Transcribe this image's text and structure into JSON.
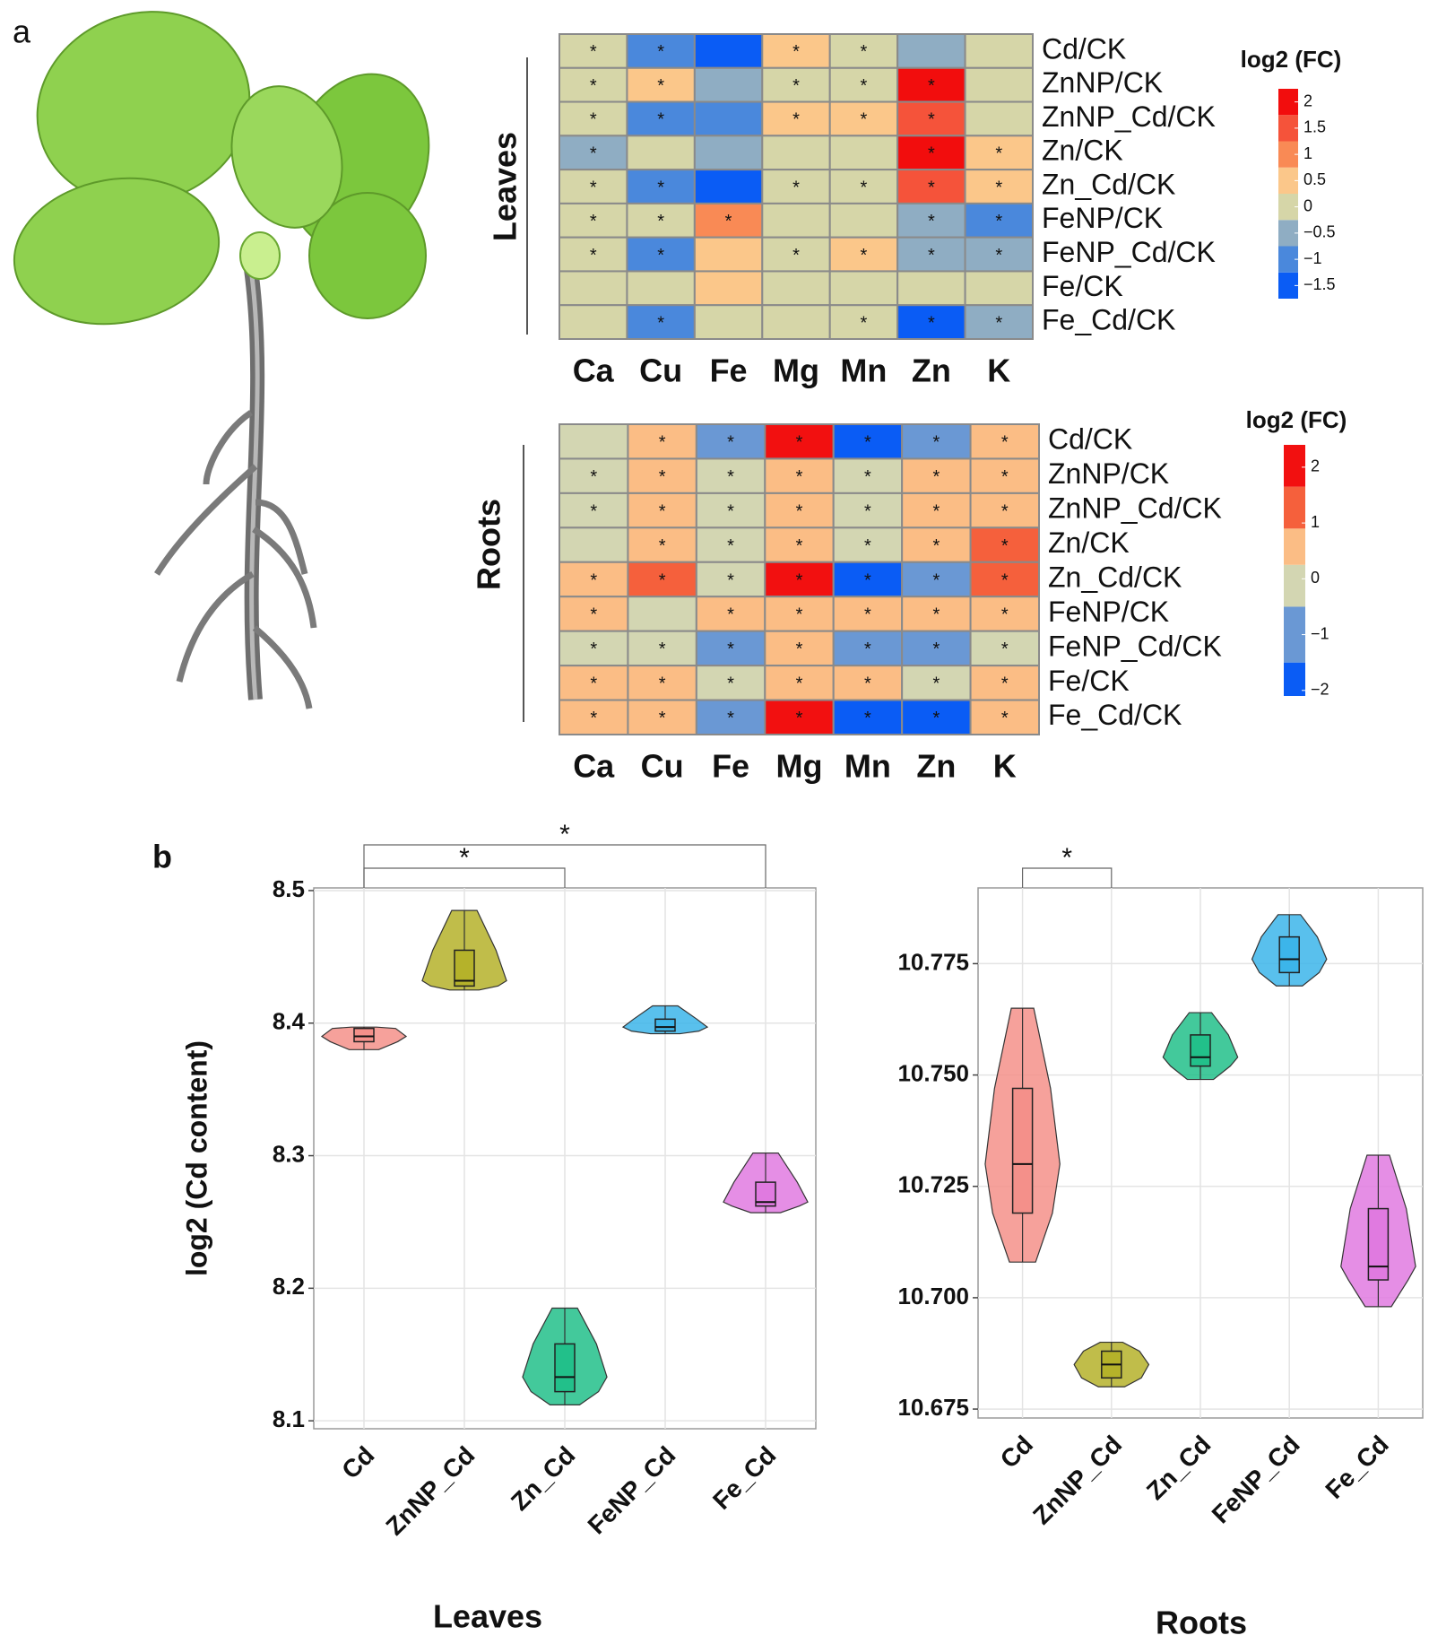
{
  "panel_labels": [
    "a",
    "b"
  ],
  "chart_data": [
    {
      "type": "heatmap",
      "title": "Leaves",
      "columns": [
        "Ca",
        "Cu",
        "Fe",
        "Mg",
        "Mn",
        "Zn",
        "K"
      ],
      "rows": [
        "Cd/CK",
        "ZnNP/CK",
        "ZnNP_Cd/CK",
        "Zn/CK",
        "Zn_Cd/CK",
        "FeNP/CK",
        "FeNP_Cd/CK",
        "Fe/CK",
        "Fe_Cd/CK"
      ],
      "values": [
        [
          0,
          -1,
          -1.5,
          0.5,
          0,
          -0.5,
          0
        ],
        [
          0,
          0.5,
          -0.5,
          0,
          0,
          2,
          0
        ],
        [
          0,
          -1,
          -1,
          0.5,
          0.5,
          1.5,
          0
        ],
        [
          -0.5,
          0,
          -0.5,
          0,
          0,
          2,
          0.5
        ],
        [
          0,
          -1,
          -1.5,
          0,
          0,
          1.5,
          0.5
        ],
        [
          0,
          0,
          1,
          0,
          0,
          -0.5,
          -1
        ],
        [
          0,
          -1,
          0.5,
          0,
          0.5,
          -0.5,
          -0.5
        ],
        [
          0,
          0,
          0.5,
          0,
          0,
          0,
          0
        ],
        [
          0,
          -1,
          0,
          0,
          0,
          -1.5,
          -0.5
        ]
      ],
      "stars": [
        [
          "*",
          "*",
          null,
          "*",
          "*",
          null,
          null
        ],
        [
          "*",
          "*",
          null,
          "*",
          "*",
          "*",
          null
        ],
        [
          "*",
          "*",
          null,
          "*",
          "*",
          "*",
          null
        ],
        [
          "*",
          null,
          null,
          null,
          null,
          "*",
          "*"
        ],
        [
          "*",
          "*",
          null,
          "*",
          "*",
          "*",
          "*"
        ],
        [
          "*",
          "*",
          "*",
          null,
          null,
          "*",
          "*"
        ],
        [
          "*",
          "*",
          null,
          "*",
          "*",
          "*",
          "*"
        ],
        [
          null,
          null,
          null,
          null,
          null,
          null,
          null
        ],
        [
          null,
          "*",
          null,
          null,
          "*",
          "*",
          "*"
        ]
      ],
      "colorbar_title": "log2 (FC)",
      "colorbar_lim": [
        -1.75,
        2.25
      ],
      "colorbar_ticks": [
        2,
        1.5,
        1,
        0.5,
        0,
        {
          "value": -0.5,
          "label": "−0.5"
        },
        {
          "value": -1,
          "label": "−1"
        },
        {
          "value": -1.5,
          "label": "−1.5"
        }
      ],
      "colorscale": [
        {
          "value": -1.5,
          "color": "#0a5cf5"
        },
        {
          "value": -1,
          "color": "#4a88dc"
        },
        {
          "value": -0.5,
          "color": "#8fadc3"
        },
        {
          "value": 0,
          "color": "#d6d6a8"
        },
        {
          "value": 0.5,
          "color": "#fbc78a"
        },
        {
          "value": 1,
          "color": "#f98a55"
        },
        {
          "value": 1.5,
          "color": "#f5533a"
        },
        {
          "value": 2,
          "color": "#f20d0d"
        }
      ]
    },
    {
      "type": "heatmap",
      "title": "Roots",
      "columns": [
        "Ca",
        "Cu",
        "Fe",
        "Mg",
        "Mn",
        "Zn",
        "K"
      ],
      "rows": [
        "Cd/CK",
        "ZnNP/CK",
        "ZnNP_Cd/CK",
        "Zn/CK",
        "Zn_Cd/CK",
        "FeNP/CK",
        "FeNP_Cd/CK",
        "Fe/CK",
        "Fe_Cd/CK"
      ],
      "values": [
        [
          0,
          0.5,
          -1,
          2,
          -2,
          -1,
          0.5
        ],
        [
          0,
          0.5,
          0,
          0.5,
          0,
          0.5,
          0.5
        ],
        [
          0,
          0.5,
          0,
          0.5,
          0,
          0.5,
          0.5
        ],
        [
          0,
          0.5,
          0,
          0.5,
          0,
          0.5,
          1.3
        ],
        [
          0.5,
          1.3,
          0,
          2,
          -2,
          -1,
          1.3
        ],
        [
          0.5,
          0,
          0.5,
          0.5,
          0.5,
          0.5,
          0.5
        ],
        [
          0,
          0,
          -1,
          0.5,
          -1,
          -1,
          0
        ],
        [
          0.5,
          0.5,
          0,
          0.5,
          0.5,
          0,
          0.5
        ],
        [
          0.5,
          0.5,
          -1,
          2,
          -2,
          -2,
          0.5
        ]
      ],
      "stars": [
        [
          null,
          "*",
          "*",
          "*",
          "*",
          "*",
          "*"
        ],
        [
          "*",
          "*",
          "*",
          "*",
          "*",
          "*",
          "*"
        ],
        [
          "*",
          "*",
          "*",
          "*",
          "*",
          "*",
          "*"
        ],
        [
          null,
          "*",
          "*",
          "*",
          "*",
          "*",
          "*"
        ],
        [
          "*",
          "*",
          "*",
          "*",
          "*",
          "*",
          "*"
        ],
        [
          "*",
          null,
          "*",
          "*",
          "*",
          "*",
          "*"
        ],
        [
          "*",
          "*",
          "*",
          "*",
          "*",
          "*",
          "*"
        ],
        [
          "*",
          "*",
          "*",
          "*",
          "*",
          "*",
          "*"
        ],
        [
          "*",
          "*",
          "*",
          "*",
          "*",
          "*",
          "*"
        ]
      ],
      "colorbar_title": "log2 (FC)",
      "colorbar_lim": [
        -2.1,
        2.4
      ],
      "colorbar_ticks": [
        2,
        1,
        0,
        {
          "value": -1,
          "label": "−1"
        },
        {
          "value": -2,
          "label": "−2"
        }
      ],
      "colorscale": [
        {
          "value": -2,
          "color": "#0a5cf5"
        },
        {
          "value": -1,
          "color": "#6a98d4"
        },
        {
          "value": 0,
          "color": "#d3d6b2"
        },
        {
          "value": 0.5,
          "color": "#fbbd85"
        },
        {
          "value": 1.3,
          "color": "#f5603c"
        },
        {
          "value": 2,
          "color": "#f21010"
        }
      ]
    },
    {
      "type": "violin",
      "xlabel": "Leaves",
      "ylabel": "log2 (Cd content)",
      "categories": [
        "Cd",
        "ZnNP_Cd",
        "Zn_Cd",
        "FeNP_Cd",
        "Fe_Cd"
      ],
      "colors": [
        "#f4908a",
        "#b5b22a",
        "#22c08a",
        "#3cb5ea",
        "#e07ae0"
      ],
      "stats": [
        {
          "min": 8.38,
          "q1": 8.386,
          "median": 8.39,
          "q3": 8.396,
          "max": 8.397
        },
        {
          "min": 8.425,
          "q1": 8.428,
          "median": 8.432,
          "q3": 8.455,
          "max": 8.485
        },
        {
          "min": 8.112,
          "q1": 8.122,
          "median": 8.133,
          "q3": 8.158,
          "max": 8.185
        },
        {
          "min": 8.392,
          "q1": 8.394,
          "median": 8.397,
          "q3": 8.403,
          "max": 8.413
        },
        {
          "min": 8.257,
          "q1": 8.262,
          "median": 8.265,
          "q3": 8.28,
          "max": 8.302
        }
      ],
      "ylim": [
        8.094,
        8.502
      ],
      "yticks": [
        8.1,
        8.2,
        8.3,
        8.4,
        8.5
      ],
      "grid": true,
      "annotations": [
        {
          "text": "*",
          "pair": [
            0,
            2
          ]
        },
        {
          "text": "*",
          "pair": [
            0,
            4
          ]
        }
      ]
    },
    {
      "type": "violin",
      "xlabel": "Roots",
      "categories": [
        "Cd",
        "ZnNP_Cd",
        "Zn_Cd",
        "FeNP_Cd",
        "Fe_Cd"
      ],
      "colors": [
        "#f4908a",
        "#b5b22a",
        "#22c08a",
        "#3cb5ea",
        "#e07ae0"
      ],
      "stats": [
        {
          "min": 10.708,
          "q1": 10.719,
          "median": 10.73,
          "q3": 10.747,
          "max": 10.765
        },
        {
          "min": 10.68,
          "q1": 10.682,
          "median": 10.685,
          "q3": 10.688,
          "max": 10.69
        },
        {
          "min": 10.749,
          "q1": 10.752,
          "median": 10.754,
          "q3": 10.759,
          "max": 10.764
        },
        {
          "min": 10.77,
          "q1": 10.773,
          "median": 10.776,
          "q3": 10.781,
          "max": 10.786
        },
        {
          "min": 10.698,
          "q1": 10.704,
          "median": 10.707,
          "q3": 10.72,
          "max": 10.732
        }
      ],
      "ylim": [
        10.673,
        10.792
      ],
      "yticks": [
        10.675,
        {
          "value": 10.7,
          "label": "10.700"
        },
        10.725,
        {
          "value": 10.75,
          "label": "10.750"
        },
        10.775
      ],
      "grid": true,
      "annotations": [
        {
          "text": "*",
          "pair": [
            0,
            1
          ]
        }
      ]
    }
  ]
}
